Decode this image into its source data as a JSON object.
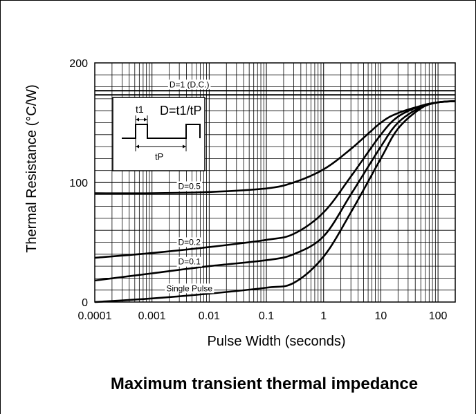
{
  "chart_data": {
    "type": "line",
    "xscale": "log",
    "xlabel": "Pulse Width (seconds)",
    "ylabel": "Thermal Resistance (°C/W)",
    "xlim": [
      0.0001,
      200
    ],
    "ylim": [
      0,
      200
    ],
    "x_ticks": [
      "0.0001",
      "0.001",
      "0.01",
      "0.1",
      "1",
      "10",
      "100"
    ],
    "x_tick_values": [
      0.0001,
      0.001,
      0.01,
      0.1,
      1,
      10,
      100
    ],
    "y_ticks": [
      "0",
      "100",
      "200"
    ],
    "y_tick_values": [
      0,
      100,
      200
    ],
    "grid": true,
    "series": [
      {
        "name": "D=1 (D.C.)",
        "x": [
          0.0001,
          200
        ],
        "y": [
          175,
          175
        ]
      },
      {
        "name": "D=0.5",
        "x": [
          0.0001,
          0.001,
          0.01,
          0.1,
          0.3,
          1,
          3,
          10,
          20,
          50,
          100,
          200
        ],
        "y": [
          91,
          91,
          92,
          95,
          100,
          111,
          128,
          150,
          158,
          164,
          167,
          168
        ]
      },
      {
        "name": "D=0.2",
        "x": [
          0.0001,
          0.001,
          0.01,
          0.1,
          0.3,
          1,
          3,
          10,
          20,
          50,
          100,
          200
        ],
        "y": [
          37,
          41,
          46,
          52,
          57,
          75,
          105,
          140,
          155,
          164,
          167,
          168
        ]
      },
      {
        "name": "D=0.1",
        "x": [
          0.0001,
          0.001,
          0.01,
          0.1,
          0.3,
          1,
          3,
          10,
          20,
          50,
          100,
          200
        ],
        "y": [
          18,
          24,
          30,
          35,
          40,
          55,
          90,
          130,
          150,
          163,
          167,
          168
        ]
      },
      {
        "name": "Single Pulse",
        "x": [
          0.0001,
          0.001,
          0.01,
          0.1,
          0.3,
          1,
          3,
          10,
          20,
          50,
          100,
          200
        ],
        "y": [
          0,
          3,
          7,
          12,
          16,
          38,
          75,
          120,
          145,
          162,
          167,
          168
        ]
      }
    ],
    "inset": {
      "formula": "D=t1/tP",
      "t1_label": "t1",
      "tp_label": "tP"
    }
  },
  "caption": "Maximum transient thermal impedance"
}
